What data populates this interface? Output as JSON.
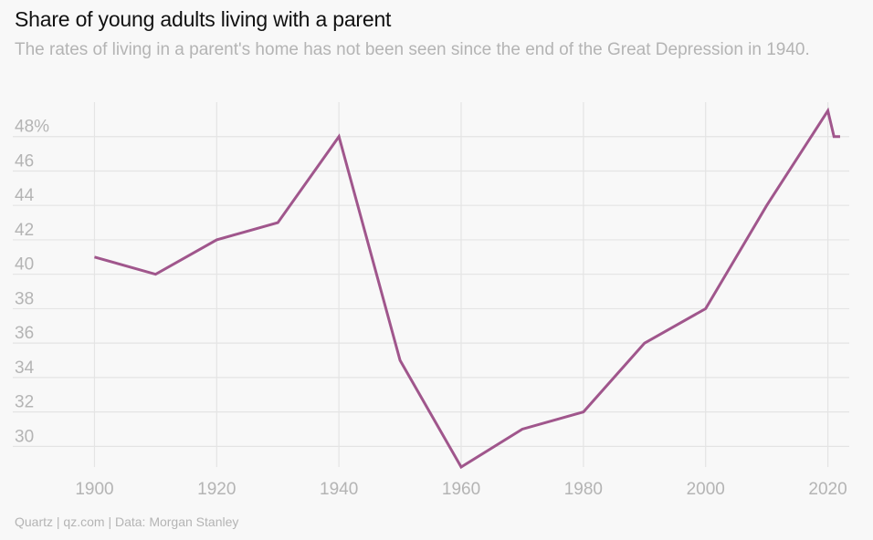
{
  "header": {
    "title": "Share of young adults living with a parent",
    "subtitle": "The rates of living in a parent's home has not been seen since the end of the Great Depression in 1940."
  },
  "footer": {
    "source": "Quartz | qz.com | Data: Morgan Stanley"
  },
  "colors": {
    "line": "#a0568c",
    "grid": "#e4e4e4",
    "tick": "#b4b4b4",
    "background": "#f8f8f8"
  },
  "chart_data": {
    "type": "line",
    "title": "Share of young adults living with a parent",
    "subtitle": "The rates of living in a parent's home has not been seen since the end of the Great Depression in 1940.",
    "xlabel": "",
    "ylabel": "",
    "x": [
      1900,
      1910,
      1920,
      1930,
      1940,
      1950,
      1960,
      1970,
      1980,
      1990,
      2000,
      2010,
      2020,
      2021,
      2022
    ],
    "series": [
      {
        "values": [
          41,
          40,
          42,
          43,
          48,
          35,
          28.8,
          31,
          32,
          36,
          38,
          44,
          49.5,
          48,
          48
        ]
      }
    ],
    "xlim": [
      1895,
      2023.5
    ],
    "ylim": [
      28.8,
      50.0
    ],
    "x_ticks": [
      1900,
      1920,
      1940,
      1960,
      1980,
      2000,
      2020
    ],
    "y_ticks": [
      30,
      32,
      34,
      36,
      38,
      40,
      42,
      44,
      46,
      48
    ],
    "y_tick_labels": [
      "30",
      "32",
      "34",
      "36",
      "38",
      "40",
      "42",
      "44",
      "46",
      "48%"
    ],
    "grid": true,
    "legend": "none"
  }
}
